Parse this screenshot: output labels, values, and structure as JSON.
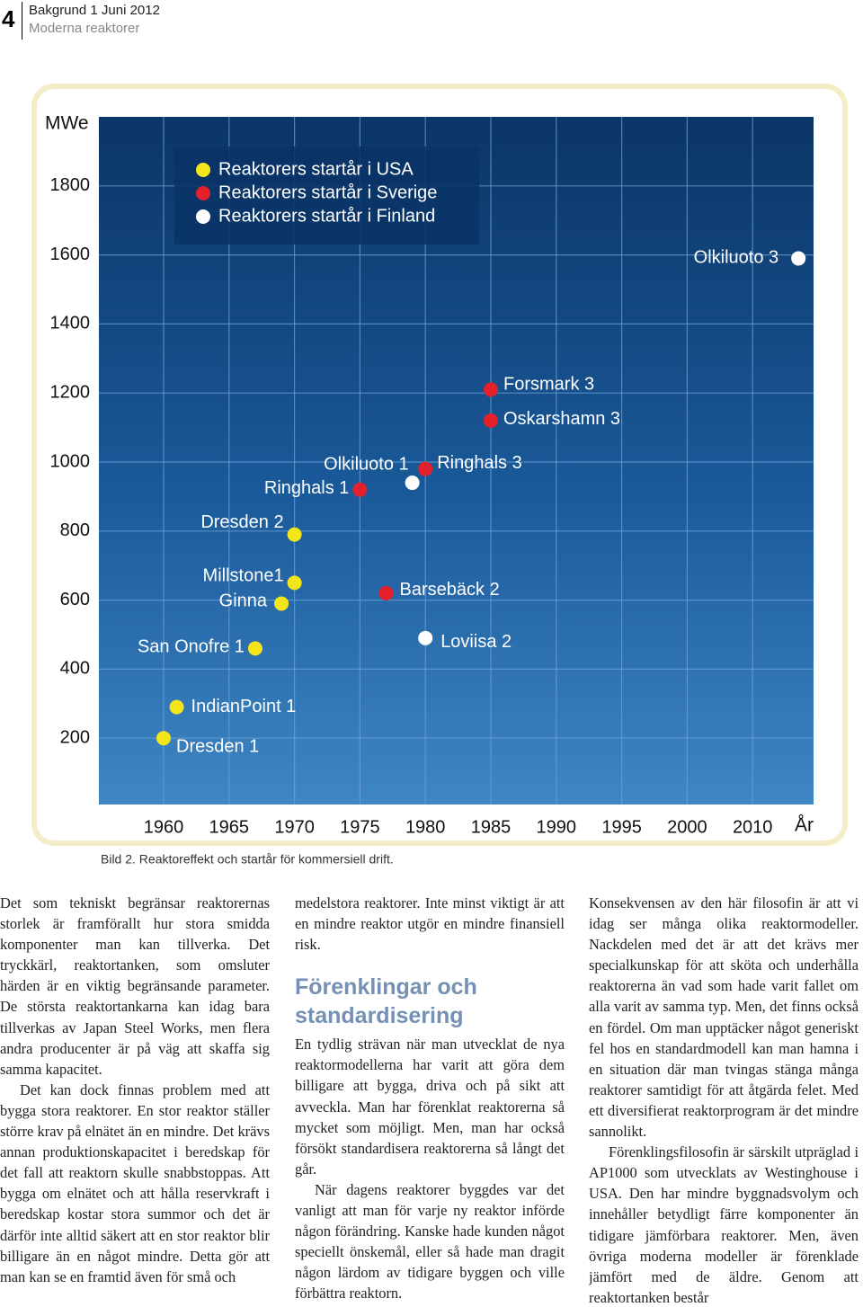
{
  "header": {
    "page_number": "4",
    "line1": "Bakgrund 1 Juni 2012",
    "line2": "Moderna reaktorer"
  },
  "chart_data": {
    "type": "scatter",
    "y_label": "MWe",
    "x_label": "År",
    "caption": "Bild 2. Reaktoreffekt och startår för kommersiell drift.",
    "ylim": [
      0,
      2000
    ],
    "yticks": [
      200,
      400,
      600,
      800,
      1000,
      1200,
      1400,
      1600,
      1800
    ],
    "xticks": [
      1960,
      1965,
      1970,
      1975,
      1980,
      1985,
      1990,
      1995,
      2000,
      2010
    ],
    "grid": true,
    "series": [
      {
        "name": "Reaktorers startår i USA",
        "color": "#f4e41a",
        "x": [
          1960,
          1961,
          1967,
          1969,
          1970,
          1970
        ],
        "values": [
          200,
          290,
          460,
          590,
          650,
          790
        ],
        "labels": [
          "Dresden 1",
          "IndianPoint 1",
          "San Onofre 1",
          "Ginna",
          "Millstone1",
          "Dresden 2"
        ]
      },
      {
        "name": "Reaktorers startår i Sverige",
        "color": "#e3202b",
        "x": [
          1975,
          1977,
          1980,
          1985,
          1985
        ],
        "values": [
          920,
          620,
          980,
          1120,
          1210
        ],
        "labels": [
          "Ringhals 1",
          "Barsebäck 2",
          "Ringhals 3",
          "Oskarshamn 3",
          "Forsmark 3"
        ]
      },
      {
        "name": "Reaktorers startår i Finland",
        "color": "#ffffff",
        "x": [
          1979,
          1980,
          2017
        ],
        "values": [
          940,
          490,
          1590
        ],
        "labels": [
          "Olkiluoto 1",
          "Loviisa 2",
          "Olkiluoto 3"
        ]
      }
    ]
  },
  "columns": [
    [
      {
        "paragraph": "Det som tekniskt begränsar reaktorernas storlek är framförallt hur stora smidda komponenter man kan tillverka. Det tryckkärl, reaktortanken, som omsluter härden är en viktig begränsande parameter. De största reaktortankarna kan idag bara tillverkas av Japan Steel Works, men flera andra producenter är på väg att skaffa sig samma kapacitet."
      },
      {
        "paragraph": "Det kan dock finnas problem med att bygga stora reaktorer. En stor reaktor ställer större krav på elnätet än en mindre. Det krävs annan produktionskapacitet i beredskap för det fall att reaktorn skulle snabbstoppas. Att bygga om elnätet och att hålla reservkraft i beredskap kostar stora summor och det är därför inte alltid säkert att en stor reaktor blir billigare än en något mindre. Detta gör att man kan se en framtid även för små och"
      }
    ],
    [
      {
        "paragraph": "medelstora reaktorer. Inte minst viktigt är att en mindre reaktor utgör en mindre finansiell risk."
      },
      {
        "heading": "Förenklingar och standardisering"
      },
      {
        "paragraph": "En tydlig strävan när man utvecklat de nya reaktormodellerna har varit att göra dem billigare att bygga, driva och på sikt att avveckla. Man har förenklat reaktorerna så mycket som möjligt. Men, man har också försökt standardisera reaktorerna så långt det går."
      },
      {
        "paragraph": "När dagens reaktorer byggdes var det vanligt att man för varje ny reaktor införde någon förändring. Kanske hade kunden något speciellt önskemål, eller så hade man dragit någon lärdom av tidigare byggen och ville förbättra reaktorn."
      }
    ],
    [
      {
        "paragraph": "Konsekvensen av den här filosofin är att vi idag ser många olika reaktormodeller. Nackdelen med det är att det krävs mer specialkunskap för att sköta och underhålla reaktorerna än vad som hade varit fallet om alla varit av samma typ. Men, det finns också en fördel. Om man upptäcker något generiskt fel hos en standardmodell kan man hamna i en situation där man tvingas stänga många reaktorer samtidigt för att åtgärda felet. Med ett diversifierat reaktorprogram är det mindre sannolikt."
      },
      {
        "paragraph": "Förenklingsfilosofin är särskilt utpräglad i AP1000 som utvecklats av Westinghouse i USA. Den har mindre byggnadsvolym och innehåller betydligt färre komponenter än tidigare jämförbara reaktorer. Men, även övriga moderna modeller är förenklade jämfört med de äldre. Genom att reaktortanken består"
      }
    ]
  ]
}
